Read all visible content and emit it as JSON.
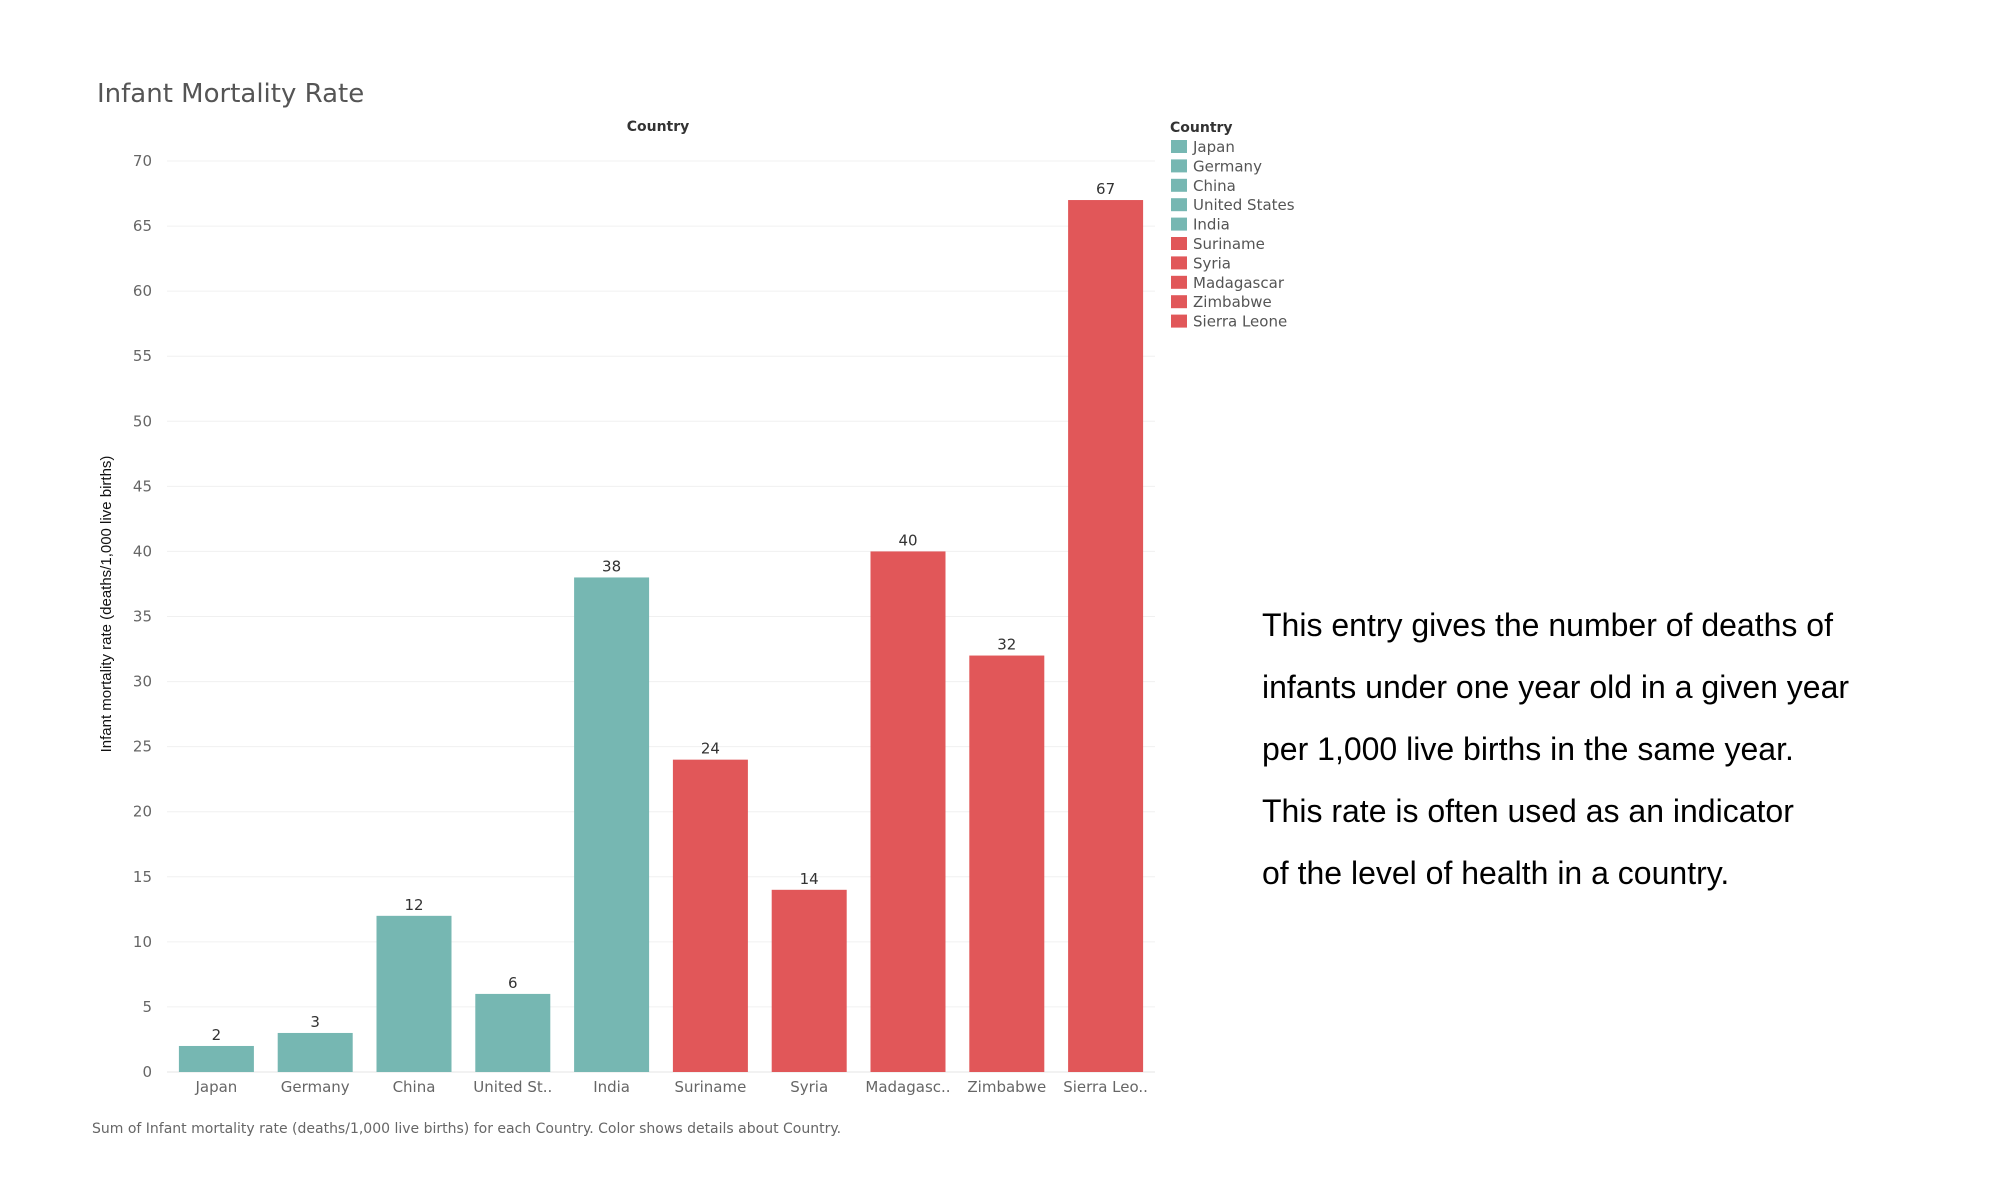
{
  "chart_data": {
    "type": "bar",
    "title": "Infant Mortality Rate",
    "column_header": "Country",
    "ylabel": "Infant mortality rate (deaths/1,000 live births)",
    "xlabel": "",
    "ylim": [
      0,
      70
    ],
    "yticks": [
      0,
      5,
      10,
      15,
      20,
      25,
      30,
      35,
      40,
      45,
      50,
      55,
      60,
      65,
      70
    ],
    "grid": true,
    "categories": [
      "Japan",
      "Germany",
      "China",
      "United St..",
      "India",
      "Suriname",
      "Syria",
      "Madagasc..",
      "Zimbabwe",
      "Sierra Leo.."
    ],
    "values": [
      2,
      3,
      12,
      6,
      38,
      24,
      14,
      40,
      32,
      67
    ],
    "bar_colors": [
      "#76b7b2",
      "#76b7b2",
      "#76b7b2",
      "#76b7b2",
      "#76b7b2",
      "#e15759",
      "#e15759",
      "#e15759",
      "#e15759",
      "#e15759"
    ],
    "legend": {
      "title": "Country",
      "placement": "right",
      "items": [
        {
          "label": "Japan",
          "color": "#76b7b2"
        },
        {
          "label": "Germany",
          "color": "#76b7b2"
        },
        {
          "label": "China",
          "color": "#76b7b2"
        },
        {
          "label": "United States",
          "color": "#76b7b2"
        },
        {
          "label": "India",
          "color": "#76b7b2"
        },
        {
          "label": "Suriname",
          "color": "#e15759"
        },
        {
          "label": "Syria",
          "color": "#e15759"
        },
        {
          "label": "Madagascar",
          "color": "#e15759"
        },
        {
          "label": "Zimbabwe",
          "color": "#e15759"
        },
        {
          "label": "Sierra Leone",
          "color": "#e15759"
        }
      ]
    },
    "footnote": "Sum of Infant mortality rate (deaths/1,000 live births) for each Country.  Color shows details about Country."
  },
  "description": [
    "This entry gives the number of deaths of",
    "infants under one year old in a given year",
    "per 1,000 live births in the same year.",
    "This rate is often used as an indicator",
    "of the level of health in a country."
  ]
}
